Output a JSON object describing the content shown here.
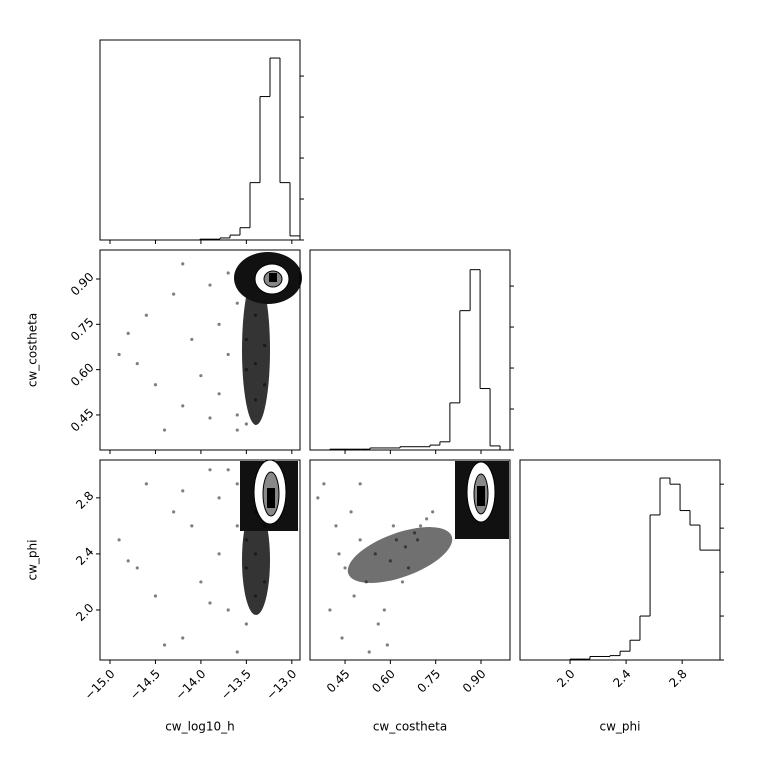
{
  "chart_data": {
    "type": "corner",
    "color": "#000000",
    "params": [
      {
        "name": "cw_log10_h",
        "lim": [
          -15.11,
          -12.91
        ],
        "ticks": [
          {
            "value": -15.0,
            "label": "−15.0"
          },
          {
            "value": -14.5,
            "label": "−14.5"
          },
          {
            "value": -14.0,
            "label": "−14.0"
          },
          {
            "value": -13.5,
            "label": "−13.5"
          },
          {
            "value": -13.0,
            "label": "−13.0"
          }
        ]
      },
      {
        "name": "cw_costheta",
        "lim": [
          0.334,
          0.996
        ],
        "ticks": [
          0.45,
          {
            "value": 0.6,
            "label": "0.60"
          },
          0.75,
          {
            "value": 0.9,
            "label": "0.90"
          }
        ]
      },
      {
        "name": "cw_phi",
        "lim": [
          1.643,
          3.07
        ],
        "ticks": [
          {
            "value": 2.0,
            "label": "2.0"
          },
          2.4,
          2.8
        ]
      }
    ],
    "hists": [
      {
        "bins": [
          -15.11,
          -15.0,
          -14.89,
          -14.78,
          -14.67,
          -14.56,
          -14.45,
          -14.34,
          -14.23,
          -14.12,
          -14.01,
          -13.9,
          -13.79,
          -13.68,
          -13.57,
          -13.46,
          -13.35,
          -13.24,
          -13.13,
          -13.02,
          -12.91
        ],
        "values": [
          0,
          0,
          0,
          0,
          0,
          0,
          0,
          0,
          0,
          0,
          0.02,
          0.02,
          0.05,
          0.12,
          0.3,
          1.4,
          3.5,
          4.44,
          1.4,
          0.1
        ],
        "ylim": [
          0,
          4.88
        ],
        "yticks": [
          0,
          1,
          2,
          3,
          4
        ]
      },
      {
        "bins": [
          0.334,
          0.367,
          0.4,
          0.433,
          0.466,
          0.5,
          0.533,
          0.566,
          0.599,
          0.632,
          0.665,
          0.698,
          0.731,
          0.764,
          0.797,
          0.83,
          0.864,
          0.897,
          0.93,
          0.963,
          0.996
        ],
        "values": [
          0,
          0,
          0.02,
          0.02,
          0.02,
          0.02,
          0.05,
          0.05,
          0.05,
          0.08,
          0.08,
          0.08,
          0.12,
          0.2,
          1.15,
          3.4,
          4.4,
          1.5,
          0.1,
          0
        ],
        "ylim": [
          0,
          4.88
        ],
        "yticks": [
          0,
          1,
          2,
          3,
          4
        ]
      },
      {
        "bins": [
          1.643,
          1.714,
          1.786,
          1.857,
          1.928,
          2.0,
          2.071,
          2.142,
          2.214,
          2.285,
          2.357,
          2.428,
          2.499,
          2.571,
          2.642,
          2.713,
          2.785,
          2.856,
          2.927,
          2.999,
          3.07
        ],
        "values": [
          0,
          0,
          0,
          0,
          0,
          0.02,
          0.02,
          0.08,
          0.08,
          0.1,
          0.2,
          0.45,
          1.0,
          3.3,
          4.14,
          4.0,
          3.4,
          3.07,
          2.5,
          2.5
        ],
        "ylim": [
          0,
          4.55
        ],
        "yticks": [
          0,
          1,
          2,
          3,
          4
        ]
      }
    ],
    "scatters": [
      {
        "xparam": 0,
        "yparam": 1,
        "x": [
          -14.9,
          -14.7,
          -14.6,
          -14.5,
          -14.3,
          -14.2,
          -14.1,
          -14.0,
          -13.9,
          -13.8,
          -13.8,
          -13.7,
          -13.6,
          -13.6,
          -13.5,
          -13.5,
          -13.4,
          -13.4,
          -13.4,
          -13.3,
          -13.3,
          -13.5,
          -14.4,
          -14.8,
          -13.9,
          -13.7,
          -14.2,
          -13.6
        ],
        "y": [
          0.65,
          0.62,
          0.78,
          0.55,
          0.85,
          0.48,
          0.7,
          0.58,
          0.88,
          0.52,
          0.75,
          0.65,
          0.45,
          0.82,
          0.6,
          0.7,
          0.5,
          0.62,
          0.78,
          0.55,
          0.68,
          0.42,
          0.4,
          0.72,
          0.44,
          0.92,
          0.95,
          0.4
        ]
      },
      {
        "xparam": 0,
        "yparam": 2,
        "x": [
          -14.9,
          -14.7,
          -14.6,
          -14.5,
          -14.3,
          -14.2,
          -14.1,
          -14.0,
          -13.9,
          -13.8,
          -13.8,
          -13.7,
          -13.6,
          -13.6,
          -13.5,
          -13.5,
          -13.4,
          -13.4,
          -13.4,
          -13.3,
          -13.3,
          -13.5,
          -14.4,
          -14.8,
          -13.9,
          -13.7,
          -14.2,
          -13.6
        ],
        "y": [
          2.5,
          2.3,
          2.9,
          2.1,
          2.7,
          1.8,
          2.6,
          2.2,
          3.0,
          2.4,
          2.8,
          2.0,
          2.6,
          2.9,
          2.3,
          2.5,
          2.1,
          2.4,
          2.7,
          2.2,
          2.6,
          1.9,
          1.75,
          2.35,
          2.05,
          3.0,
          2.85,
          1.7
        ]
      },
      {
        "xparam": 1,
        "yparam": 2,
        "x": [
          0.36,
          0.4,
          0.42,
          0.45,
          0.48,
          0.5,
          0.52,
          0.55,
          0.58,
          0.6,
          0.62,
          0.65,
          0.68,
          0.7,
          0.72,
          0.38,
          0.44,
          0.56,
          0.64,
          0.74,
          0.47,
          0.53,
          0.59,
          0.66,
          0.5,
          0.43,
          0.61,
          0.69
        ],
        "y": [
          2.8,
          2.0,
          2.6,
          2.3,
          2.1,
          2.5,
          2.2,
          2.4,
          2.0,
          2.35,
          2.5,
          2.45,
          2.55,
          2.6,
          2.65,
          2.9,
          1.8,
          1.9,
          2.2,
          2.7,
          2.7,
          1.7,
          1.75,
          2.3,
          2.9,
          2.4,
          2.6,
          2.5
        ]
      }
    ]
  }
}
